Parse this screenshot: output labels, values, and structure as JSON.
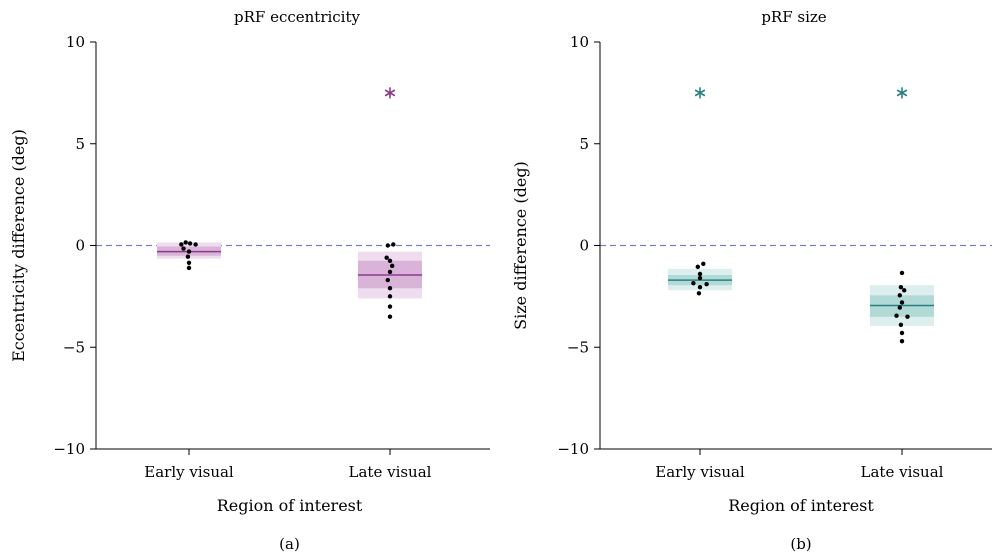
{
  "chart_data": [
    {
      "type": "scatter",
      "title": "pRF eccentricity",
      "caption": "(a)",
      "xlabel": "Region of interest",
      "ylabel": "Eccentricity difference (deg)",
      "ylim": [
        -10,
        10
      ],
      "yticks": [
        10,
        5,
        0,
        -5,
        -10
      ],
      "ytick_labels": [
        "10",
        "5",
        "0",
        "−5",
        "−10"
      ],
      "reference_line_y": 0,
      "color": "#8e3a8c",
      "box_colors": {
        "outer": "#f0dcef",
        "inner": "#d9b3d8",
        "median": "#8e3a8c"
      },
      "categories": [
        {
          "label": "Early visual",
          "median": -0.3,
          "inner_range": [
            -0.5,
            -0.05
          ],
          "outer_range": [
            -0.65,
            0.15
          ],
          "points": [
            {
              "dx": -0.35,
              "y": 0.05
            },
            {
              "dx": -0.15,
              "y": 0.15
            },
            {
              "dx": 0.05,
              "y": 0.1
            },
            {
              "dx": 0.3,
              "y": 0.05
            },
            {
              "dx": -0.25,
              "y": -0.15
            },
            {
              "dx": 0.0,
              "y": -0.3
            },
            {
              "dx": -0.05,
              "y": -0.55
            },
            {
              "dx": 0.0,
              "y": -0.85
            },
            {
              "dx": 0.0,
              "y": -1.1
            }
          ],
          "significant": false
        },
        {
          "label": "Late visual",
          "median": -1.45,
          "inner_range": [
            -2.1,
            -0.75
          ],
          "outer_range": [
            -2.6,
            -0.3
          ],
          "points": [
            {
              "dx": -0.1,
              "y": 0.0
            },
            {
              "dx": 0.15,
              "y": 0.05
            },
            {
              "dx": -0.15,
              "y": -0.6
            },
            {
              "dx": 0.0,
              "y": -0.75
            },
            {
              "dx": 0.1,
              "y": -1.0
            },
            {
              "dx": 0.0,
              "y": -1.3
            },
            {
              "dx": -0.1,
              "y": -1.7
            },
            {
              "dx": 0.0,
              "y": -2.1
            },
            {
              "dx": 0.0,
              "y": -2.5
            },
            {
              "dx": 0.0,
              "y": -3.0
            },
            {
              "dx": 0.0,
              "y": -3.5
            }
          ],
          "significant": true,
          "significance_y": 7.5
        }
      ]
    },
    {
      "type": "scatter",
      "title": "pRF size",
      "caption": "(b)",
      "xlabel": "Region of interest",
      "ylabel": "Size difference (deg)",
      "ylim": [
        -10,
        10
      ],
      "yticks": [
        10,
        5,
        0,
        -5,
        -10
      ],
      "ytick_labels": [
        "10",
        "5",
        "0",
        "−5",
        "−10"
      ],
      "reference_line_y": 0,
      "color": "#2a8080",
      "box_colors": {
        "outer": "#dcefee",
        "inner": "#b1d9d6",
        "median": "#2a8080"
      },
      "categories": [
        {
          "label": "Early visual",
          "median": -1.7,
          "inner_range": [
            -1.95,
            -1.45
          ],
          "outer_range": [
            -2.2,
            -1.15
          ],
          "points": [
            {
              "dx": 0.15,
              "y": -0.9
            },
            {
              "dx": -0.1,
              "y": -1.05
            },
            {
              "dx": 0.0,
              "y": -1.4
            },
            {
              "dx": 0.0,
              "y": -1.6
            },
            {
              "dx": -0.3,
              "y": -1.85
            },
            {
              "dx": 0.3,
              "y": -1.9
            },
            {
              "dx": 0.0,
              "y": -2.05
            },
            {
              "dx": -0.05,
              "y": -2.35
            }
          ],
          "significant": true,
          "significance_y": 7.5
        },
        {
          "label": "Late visual",
          "median": -2.95,
          "inner_range": [
            -3.5,
            -2.45
          ],
          "outer_range": [
            -3.95,
            -1.95
          ],
          "points": [
            {
              "dx": 0.0,
              "y": -1.35
            },
            {
              "dx": -0.05,
              "y": -2.05
            },
            {
              "dx": 0.1,
              "y": -2.2
            },
            {
              "dx": -0.1,
              "y": -2.45
            },
            {
              "dx": 0.0,
              "y": -2.8
            },
            {
              "dx": -0.1,
              "y": -3.05
            },
            {
              "dx": -0.25,
              "y": -3.45
            },
            {
              "dx": 0.25,
              "y": -3.5
            },
            {
              "dx": -0.05,
              "y": -3.9
            },
            {
              "dx": 0.0,
              "y": -4.3
            },
            {
              "dx": 0.0,
              "y": -4.7
            }
          ],
          "significant": true,
          "significance_y": 7.5
        }
      ]
    }
  ]
}
